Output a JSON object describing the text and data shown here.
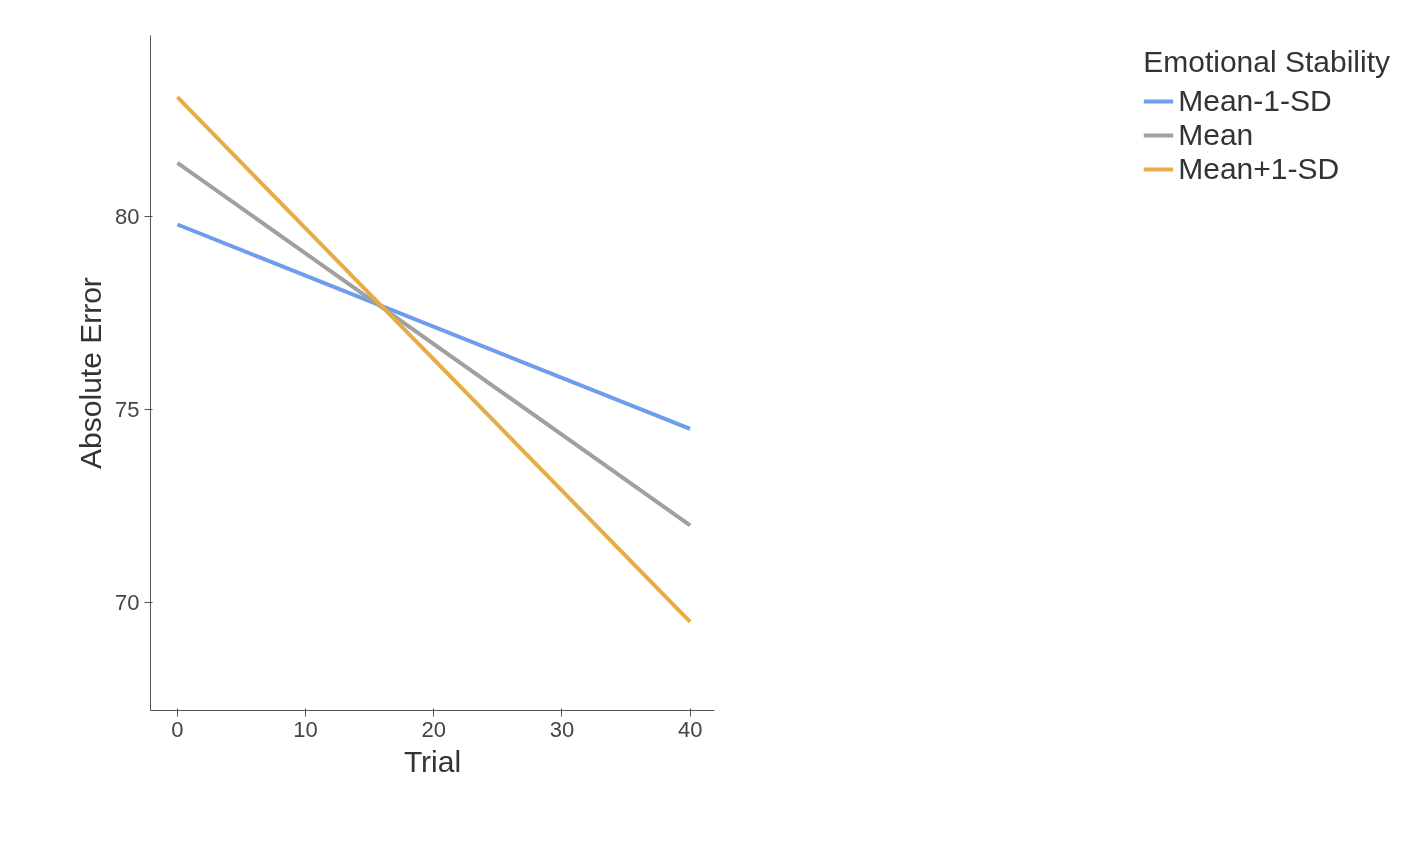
{
  "chart_data": {
    "type": "line",
    "xlabel": "Trial",
    "ylabel": "Absolute Error",
    "legend_title": "Emotional Stability",
    "legend": "right",
    "grid": false,
    "marker": "none",
    "line_style": "solid",
    "x": [
      0,
      40
    ],
    "xlim": [
      -2.1,
      41.9
    ],
    "xticks": [
      0,
      10,
      20,
      30,
      40
    ],
    "ylim": [
      67.2,
      84.7
    ],
    "yticks": [
      70,
      75,
      80
    ],
    "series": [
      {
        "name": "Mean-1-SD",
        "color": "#6d9eeb",
        "values": [
          79.8,
          74.5
        ]
      },
      {
        "name": "Mean",
        "color": "#a0a0a0",
        "values": [
          81.4,
          72.0
        ]
      },
      {
        "name": "Mean+1-SD",
        "color": "#e6ac48",
        "values": [
          83.1,
          69.5
        ]
      }
    ]
  }
}
